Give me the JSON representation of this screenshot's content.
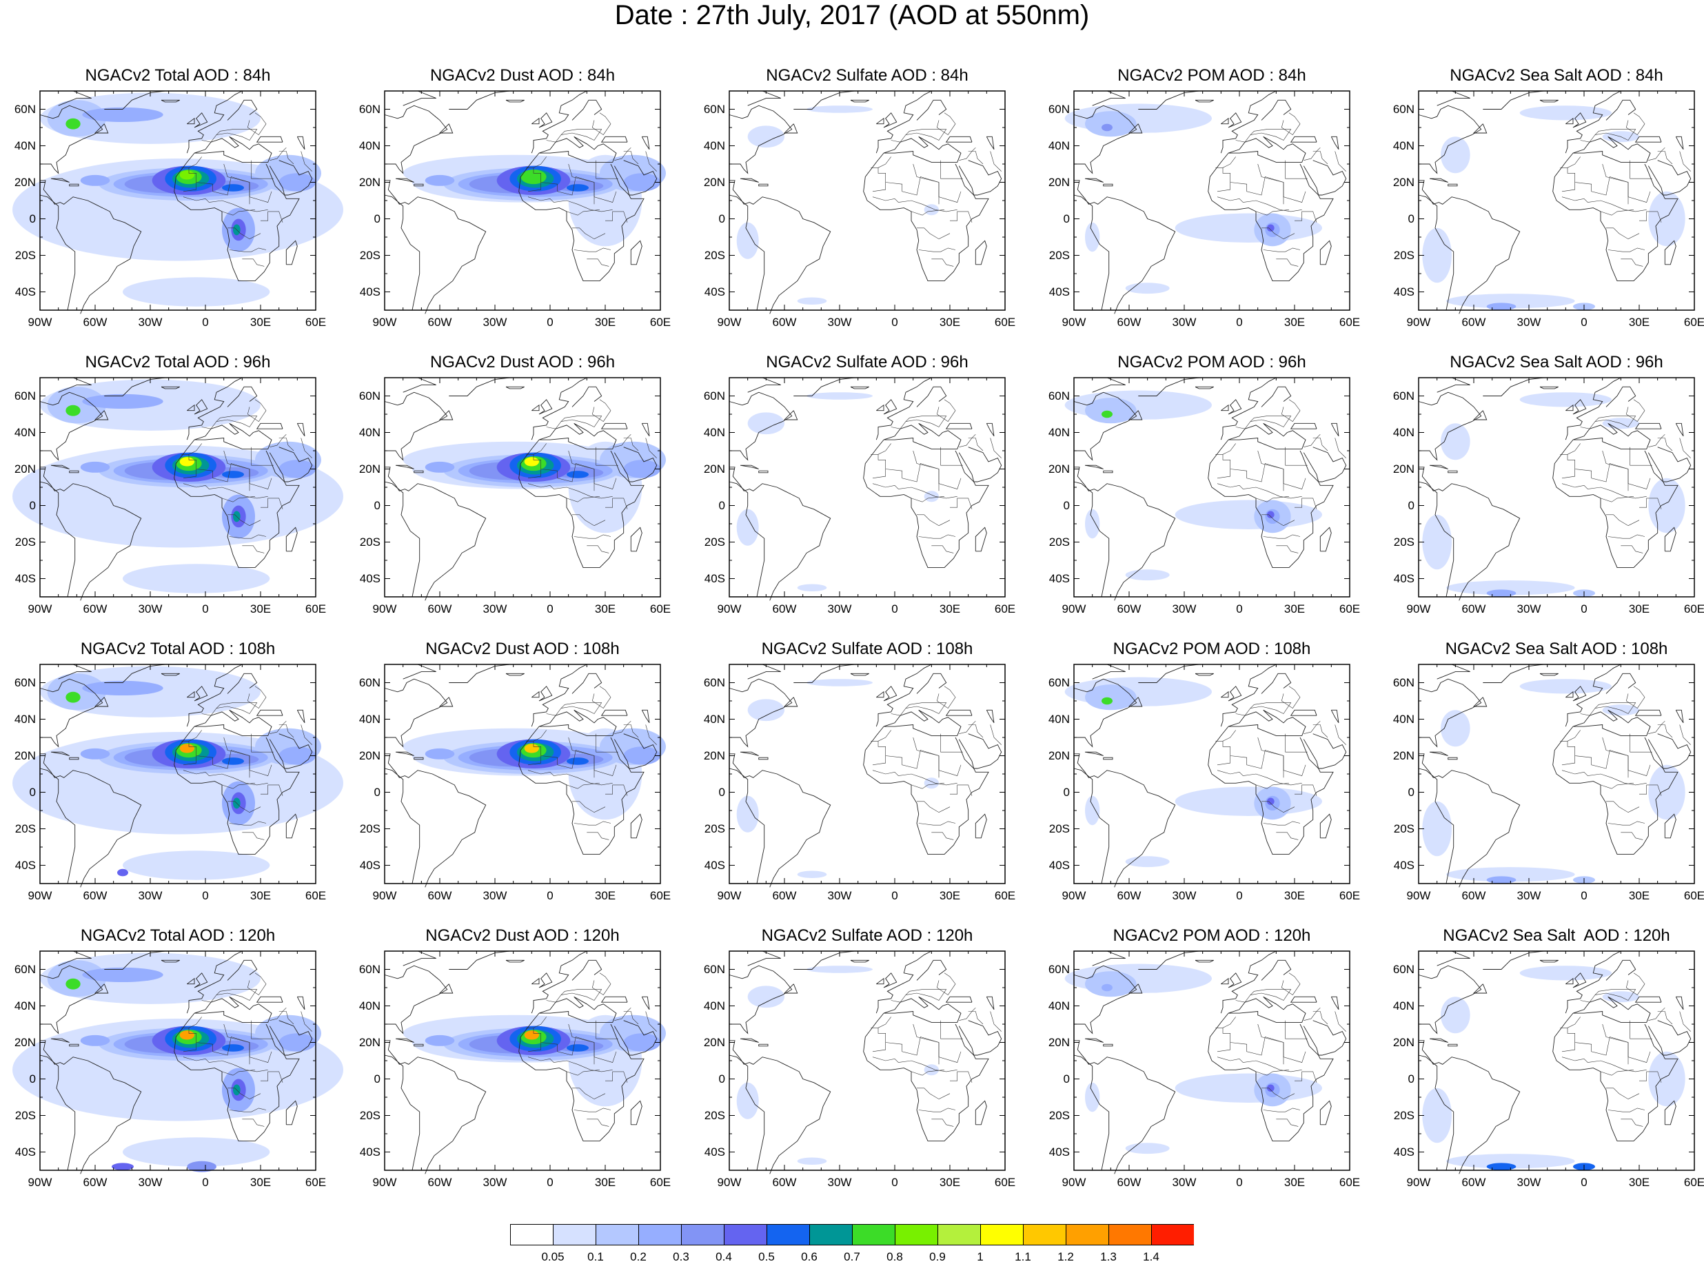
{
  "title": "Date : 27th July, 2017 (AOD at 550nm)",
  "species": [
    "Total",
    "Dust",
    "Sulfate",
    "POM",
    "Sea Salt"
  ],
  "panel_titles": [
    [
      "NGACv2 Total AOD : 84h",
      "NGACv2 Dust AOD : 84h",
      "NGACv2 Sulfate AOD : 84h",
      "NGACv2 POM AOD : 84h",
      "NGACv2 Sea Salt AOD : 84h"
    ],
    [
      "NGACv2 Total AOD : 96h",
      "NGACv2 Dust AOD : 96h",
      "NGACv2 Sulfate AOD : 96h",
      "NGACv2 POM AOD : 96h",
      "NGACv2 Sea Salt AOD : 96h"
    ],
    [
      "NGACv2 Total AOD : 108h",
      "NGACv2 Dust AOD : 108h",
      "NGACv2 Sulfate AOD : 108h",
      "NGACv2 POM AOD : 108h",
      "NGACv2 Sea Salt AOD : 108h"
    ],
    [
      "NGACv2 Total AOD : 120h",
      "NGACv2 Dust AOD : 120h",
      "NGACv2 Sulfate AOD : 120h",
      "NGACv2 POM AOD : 120h",
      "NGACv2 Sea Salt  AOD : 120h"
    ]
  ],
  "lat_ticks": [
    "60N",
    "40N",
    "20N",
    "0",
    "20S",
    "40S"
  ],
  "lon_ticks": [
    "90W",
    "60W",
    "30W",
    "0",
    "30E",
    "60E"
  ],
  "map_extent": {
    "lon_min": -90,
    "lon_max": 60,
    "lat_min": -50,
    "lat_max": 70
  },
  "colorbar": {
    "levels": [
      "0.05",
      "0.1",
      "0.2",
      "0.3",
      "0.4",
      "0.5",
      "0.6",
      "0.7",
      "0.8",
      "0.9",
      "1",
      "1.1",
      "1.2",
      "1.3",
      "1.4"
    ],
    "colors": [
      "#ffffff",
      "#d6e1ff",
      "#b4c8ff",
      "#96aeff",
      "#8294f5",
      "#6464f0",
      "#1464f0",
      "#009696",
      "#3cdc28",
      "#78f000",
      "#b4f03c",
      "#ffff00",
      "#ffc800",
      "#ffa000",
      "#ff7800",
      "#ff1e00"
    ]
  }
}
